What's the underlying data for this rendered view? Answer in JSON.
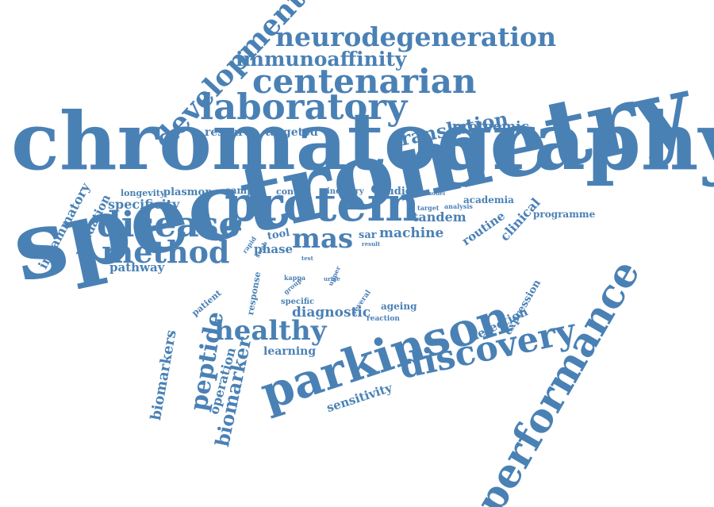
{
  "colors": {
    "word": "#4a81b5",
    "background": "#ffffff"
  },
  "words": {
    "spectrometry": "spectrometry",
    "chromatography": "chromatography",
    "protein": "protein",
    "parkinson": "parkinson",
    "performance": "performance",
    "discovery": "discovery",
    "laboratory": "laboratory",
    "centenarian": "centenarian",
    "neurodegeneration": "neurodegeneration",
    "immunoaffinity": "immunoaffinity",
    "development": "development",
    "disease": "disease",
    "method": "method",
    "mas": "mas",
    "healthy": "healthy",
    "translation": "translation",
    "proteomic": "proteomic",
    "research": "research",
    "targeted": "targeted",
    "peptide": "peptide",
    "biomarker": "biomarker",
    "biomarkers": "biomarkers",
    "operation": "operation",
    "diagnostic": "diagnostic",
    "machine": "machine",
    "tandem": "tandem",
    "routine": "routine",
    "clinical": "clinical",
    "detection": "detection",
    "expression": "expression",
    "sensitivity": "sensitivity",
    "learning": "learning",
    "specificity": "specificity",
    "pathway": "pathway",
    "validation": "validation",
    "inflammatory": "inflammatory",
    "longevity": "longevity",
    "plasmon": "plasmon",
    "sample": "sample",
    "control": "control",
    "industry": "industry",
    "studies": "studies",
    "model": "model",
    "academia": "academia",
    "target": "target",
    "analysis": "analysis",
    "programme": "programme",
    "phase": "phase",
    "tool": "tool",
    "sar": "sar",
    "result": "result",
    "virus": "virus",
    "rapid": "rapid",
    "swab": "swab",
    "test": "test",
    "response": "response",
    "kappa": "kappa",
    "group": "group",
    "upper": "upper",
    "urine": "urine",
    "patient": "patient",
    "specific": "specific",
    "several": "several",
    "reaction": "reaction",
    "ageing": "ageing"
  }
}
